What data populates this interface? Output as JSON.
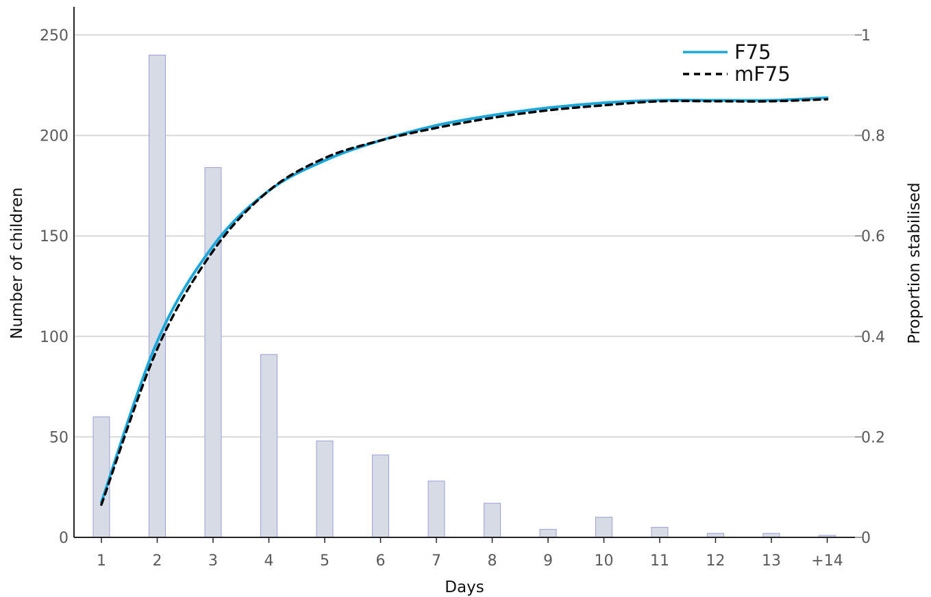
{
  "chart_data": {
    "type": "bar",
    "categories": [
      "1",
      "2",
      "3",
      "4",
      "5",
      "6",
      "7",
      "8",
      "9",
      "10",
      "11",
      "12",
      "13",
      "+14"
    ],
    "bar_values": [
      60,
      240,
      184,
      91,
      48,
      41,
      28,
      17,
      4,
      10,
      5,
      2,
      2,
      1
    ],
    "series": [
      {
        "name": "F75",
        "type": "line",
        "axis": "right",
        "style": "solid",
        "color": "#1aa7dc",
        "values": [
          0.07,
          0.39,
          0.58,
          0.69,
          0.75,
          0.79,
          0.82,
          0.84,
          0.855,
          0.865,
          0.87,
          0.87,
          0.87,
          0.875
        ]
      },
      {
        "name": "mF75",
        "type": "line",
        "axis": "right",
        "style": "dashed",
        "color": "#000000",
        "values": [
          0.065,
          0.375,
          0.57,
          0.69,
          0.755,
          0.79,
          0.815,
          0.835,
          0.85,
          0.86,
          0.868,
          0.868,
          0.868,
          0.872
        ]
      }
    ],
    "xlabel": "Days",
    "ylabel_left": "Number of children",
    "ylabel_right": "Proportion stabilised",
    "ylim_left": [
      0,
      250
    ],
    "ylim_right": [
      0,
      1
    ],
    "yticks_left": [
      "0",
      "50",
      "100",
      "150",
      "200",
      "250"
    ],
    "yticks_right": [
      "0",
      "0.2",
      "0.4",
      "0.6",
      "0.8",
      "1"
    ],
    "grid": true,
    "legend": "top-right",
    "colors": {
      "bar_fill": "#d7dbe6",
      "bar_stroke": "#9a9dd6",
      "grid": "#d9d9d9",
      "axis": "#222222"
    }
  }
}
